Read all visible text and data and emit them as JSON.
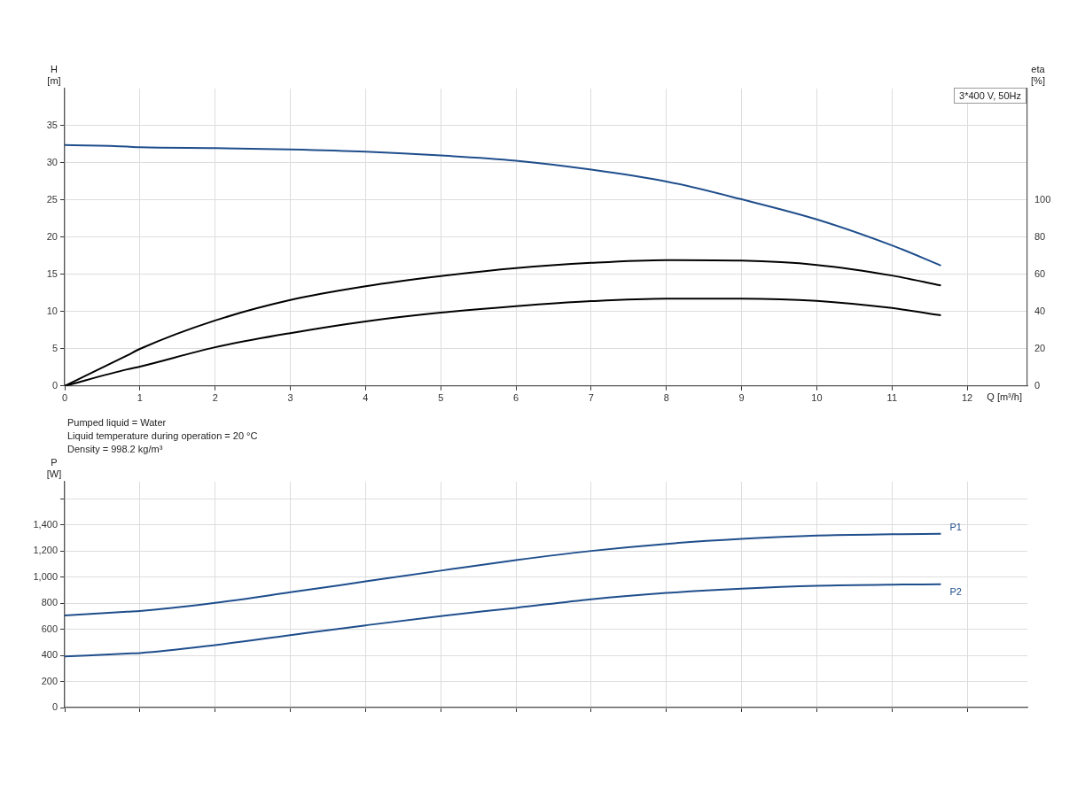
{
  "chart_data": [
    {
      "type": "line",
      "xlabel": "Q [m³/h]",
      "ylabel": "H [m]",
      "y2label": "eta [%]",
      "annotations": [
        "3*400 V, 50Hz",
        "Pumped liquid = Water",
        "Liquid temperature during operation = 20 °C",
        "Density = 998.2 kg/m³"
      ],
      "x": [
        0,
        0.83,
        1,
        2,
        3,
        4,
        5,
        6,
        7,
        8,
        9,
        10,
        11,
        11.65
      ],
      "series": [
        {
          "color": "#1f4e8c",
          "values": [
            32.4,
            32.2,
            32.1,
            32.0,
            31.8,
            31.5,
            31.0,
            30.3,
            29.1,
            27.5,
            25.1,
            22.4,
            18.9,
            16.2
          ]
        },
        {
          "color": "#000000",
          "axis": "y2",
          "values": [
            0,
            16.4,
            19.9,
            35.2,
            46.2,
            53.6,
            59.1,
            63.4,
            66.2,
            67.7,
            67.4,
            65.1,
            59.4,
            54.1
          ]
        },
        {
          "color": "#000000",
          "axis": "y2",
          "values": [
            0,
            8.9,
            10.4,
            20.8,
            28.4,
            34.7,
            39.4,
            42.9,
            45.6,
            47.0,
            47.0,
            45.8,
            41.9,
            38.0
          ]
        }
      ],
      "xlim": [
        0,
        12.8
      ],
      "xticks": [
        0,
        1,
        2,
        3,
        4,
        5,
        6,
        7,
        8,
        9,
        10,
        11,
        12
      ],
      "ylim": [
        0,
        40
      ],
      "yticks": [
        0,
        5,
        10,
        15,
        20,
        25,
        30,
        35
      ],
      "y2lim": [
        0,
        160
      ],
      "y2ticks": [
        0,
        20,
        40,
        60,
        80,
        100
      ],
      "grid": true,
      "legend": false,
      "marker": "none"
    },
    {
      "type": "line",
      "ylabel": "P [W]",
      "x": [
        0,
        0.83,
        1,
        2,
        3,
        4,
        5,
        6,
        7,
        8,
        9,
        10,
        11,
        11.65
      ],
      "series": [
        {
          "name": "P1",
          "color": "#1f4e8c",
          "values": [
            706,
            734,
            739,
            802,
            883,
            966,
            1049,
            1130,
            1200,
            1254,
            1292,
            1318,
            1328,
            1331
          ]
        },
        {
          "name": "P2",
          "color": "#1f4e8c",
          "values": [
            391,
            414,
            418,
            479,
            555,
            630,
            701,
            764,
            830,
            878,
            911,
            933,
            942,
            944
          ]
        }
      ],
      "xlim": [
        0,
        12.8
      ],
      "xticks": [
        0,
        1,
        2,
        3,
        4,
        5,
        6,
        7,
        8,
        9,
        10,
        11,
        12
      ],
      "ylim": [
        0,
        1730
      ],
      "yticks": [
        0,
        200,
        {
          "value": 400,
          "label": "400"
        },
        {
          "value": 600,
          "label": "600"
        },
        {
          "value": 800,
          "label": "800"
        },
        {
          "value": 1000,
          "label": "1,000"
        },
        {
          "value": 1200,
          "label": "1,200"
        },
        {
          "value": 1400,
          "label": "1,400"
        },
        {
          "value": 1600,
          "label": null
        }
      ],
      "tick_labels": "y",
      "grid": true,
      "legend": false,
      "marker": "none"
    }
  ]
}
